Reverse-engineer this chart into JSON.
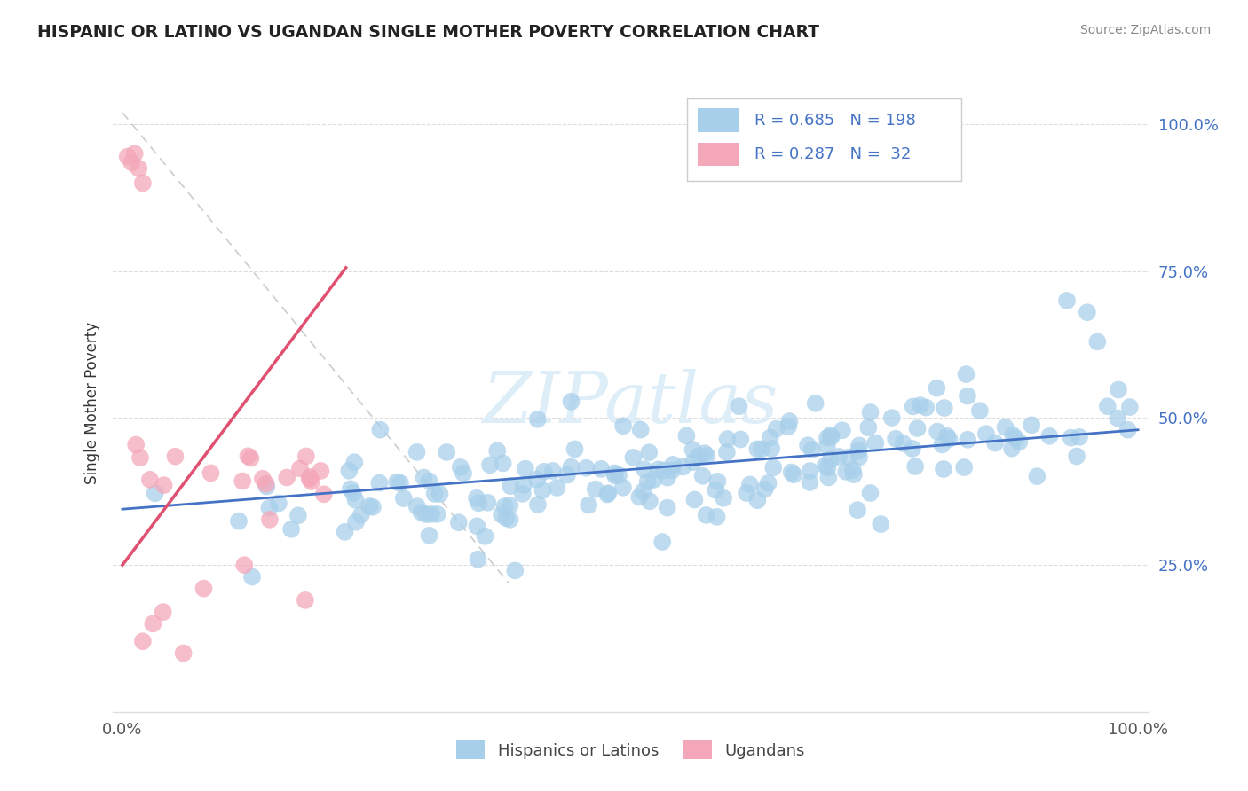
{
  "title": "HISPANIC OR LATINO VS UGANDAN SINGLE MOTHER POVERTY CORRELATION CHART",
  "source": "Source: ZipAtlas.com",
  "ylabel": "Single Mother Poverty",
  "legend_label1": "Hispanics or Latinos",
  "legend_label2": "Ugandans",
  "R1": 0.685,
  "N1": 198,
  "R2": 0.287,
  "N2": 32,
  "blue_color": "#A8CFEA",
  "pink_color": "#F4A7B9",
  "blue_line_color": "#4472C4",
  "pink_line_color": "#E05070",
  "diag_color": "#C0C0C0",
  "watermark_color": "#DDEEF8",
  "grid_color": "#DDDDDD",
  "title_color": "#222222",
  "source_color": "#888888",
  "tick_color_y": "#4472C4",
  "tick_color_x": "#555555",
  "ylabel_color": "#333333"
}
